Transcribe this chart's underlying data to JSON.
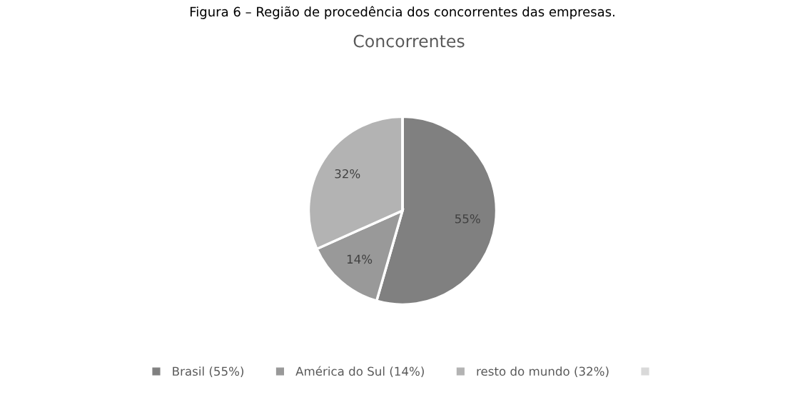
{
  "chart_data": {
    "type": "pie",
    "title": "Concorrentes",
    "categories": [
      "Brasil (55%)",
      "América do Sul (14%)",
      "resto do mundo (32%)",
      null
    ],
    "values": [
      55,
      14,
      32,
      0
    ],
    "colors": [
      "#808080",
      "#999999",
      "#b3b3b3",
      "#d9d9d9"
    ],
    "value_labels": [
      "55%",
      "14%",
      "32%",
      null
    ],
    "legend": "bottom",
    "annotations": [
      "Figura 6 – Região de procedência dos concorrentes das empresas."
    ]
  }
}
